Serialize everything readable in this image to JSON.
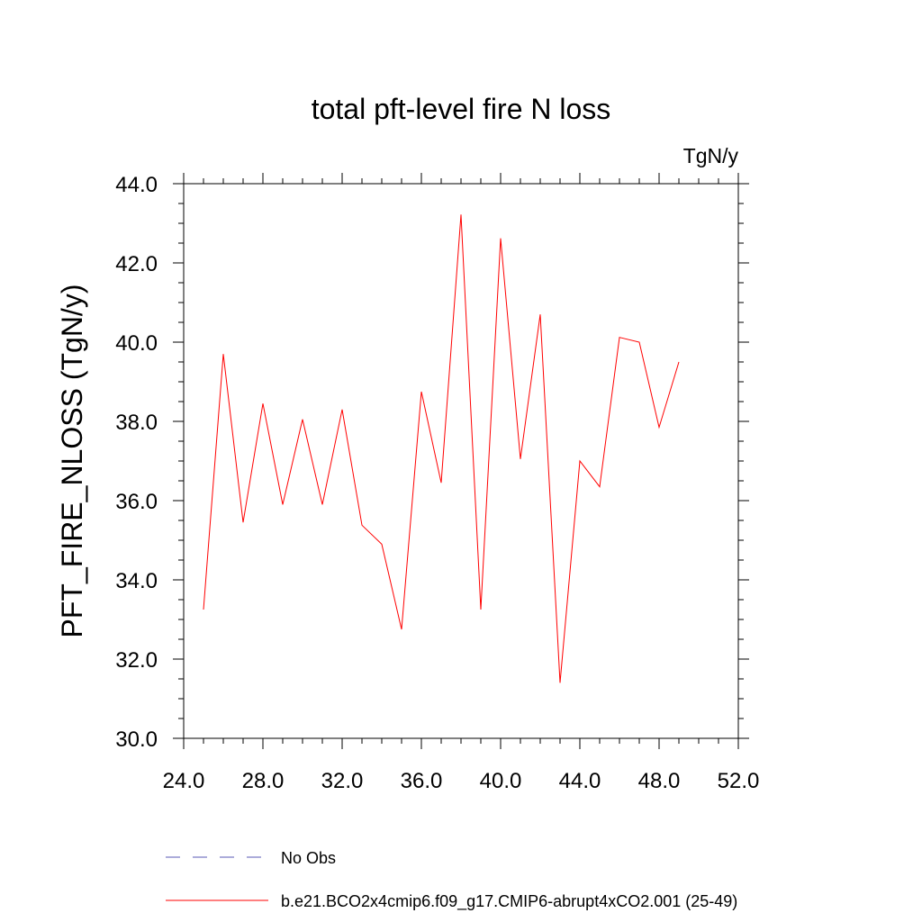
{
  "chart_data": {
    "type": "line",
    "title": "total pft-level fire N loss",
    "units": "TgN/y",
    "xlabel": "",
    "ylabel": "PFT_FIRE_NLOSS  (TgN/y)",
    "xlim": [
      24.0,
      52.0
    ],
    "ylim": [
      30.0,
      44.0
    ],
    "x_ticks": [
      24.0,
      28.0,
      32.0,
      36.0,
      40.0,
      44.0,
      48.0,
      52.0
    ],
    "x_tick_labels": [
      "24.0",
      "28.0",
      "32.0",
      "36.0",
      "40.0",
      "44.0",
      "48.0",
      "52.0"
    ],
    "y_ticks": [
      30.0,
      32.0,
      34.0,
      36.0,
      38.0,
      40.0,
      42.0,
      44.0
    ],
    "y_tick_labels": [
      "30.0",
      "32.0",
      "34.0",
      "36.0",
      "38.0",
      "40.0",
      "42.0",
      "44.0"
    ],
    "grid": false,
    "legend_position": "bottom",
    "series": [
      {
        "name": "No Obs",
        "color": "#5a5ab4",
        "style": "dashed",
        "x": [],
        "y": []
      },
      {
        "name": "b.e21.BCO2x4cmip6.f09_g17.CMIP6-abrupt4xCO2.001 (25-49)",
        "color": "#ff0000",
        "style": "solid",
        "x": [
          25,
          26,
          27,
          28,
          29,
          30,
          31,
          32,
          33,
          34,
          35,
          36,
          37,
          38,
          39,
          40,
          41,
          42,
          43,
          44,
          45,
          46,
          47,
          48,
          49
        ],
        "y": [
          33.25,
          39.7,
          35.45,
          38.45,
          35.9,
          38.05,
          35.9,
          38.3,
          35.38,
          34.9,
          32.75,
          38.75,
          36.45,
          43.22,
          33.25,
          42.62,
          37.05,
          40.7,
          31.4,
          37.0,
          36.35,
          40.12,
          40.0,
          37.85,
          39.5
        ]
      }
    ]
  }
}
